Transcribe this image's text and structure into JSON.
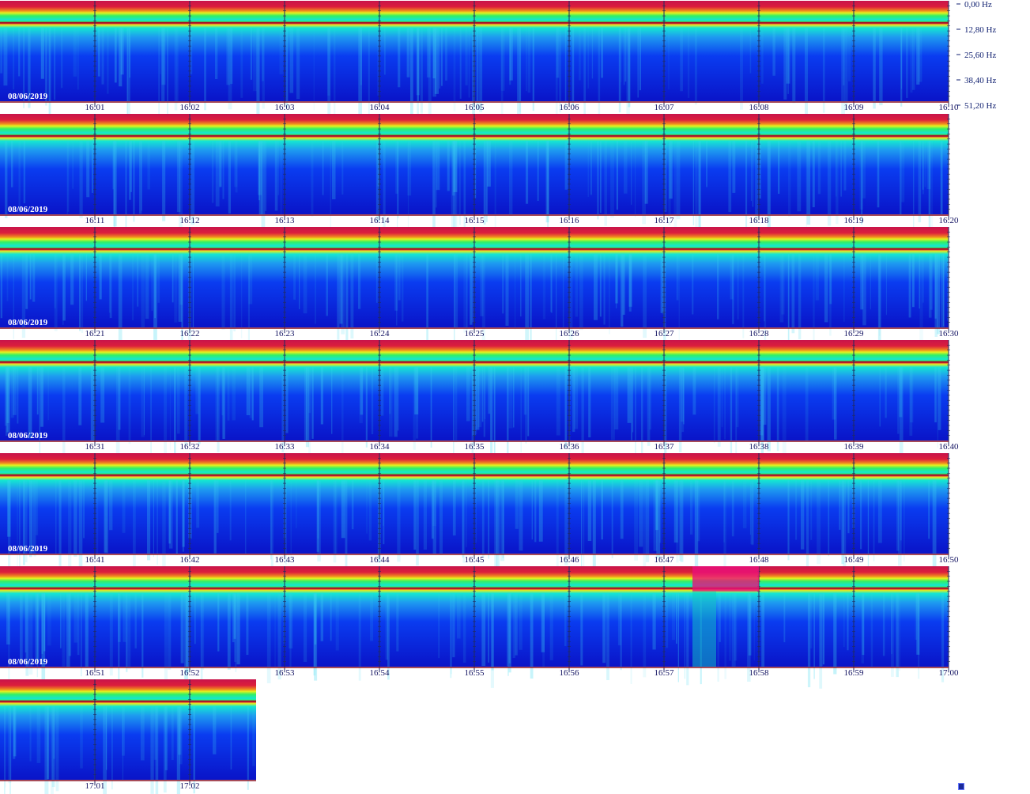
{
  "chart_data": {
    "type": "heatmap",
    "title": "",
    "xlabel": "",
    "ylabel": "",
    "frequency_axis": {
      "unit": "Hz",
      "labels": [
        "0,00 Hz",
        "12,80 Hz",
        "25,60 Hz",
        "38,40 Hz",
        "51,20 Hz"
      ],
      "range": [
        0,
        51.2
      ]
    },
    "colormap": [
      "#0a14c8",
      "#0a3cf0",
      "#1e9bf0",
      "#14e6d2",
      "#32f064",
      "#e6f01e",
      "#f08c1e",
      "#dc1e3c",
      "#c8144b"
    ],
    "rows": [
      {
        "date": "08/06/2019",
        "start": "16:00",
        "ticks": [
          "16:01",
          "16:02",
          "16:03",
          "16:04",
          "16:05",
          "16:06",
          "16:07",
          "16:08",
          "16:09",
          "16:10"
        ],
        "minutes": 10
      },
      {
        "date": "08/06/2019",
        "start": "16:10",
        "ticks": [
          "16:11",
          "16:12",
          "16:13",
          "16:14",
          "16:15",
          "16:16",
          "16:17",
          "16:18",
          "16:19",
          "16:20"
        ],
        "minutes": 10
      },
      {
        "date": "08/06/2019",
        "start": "16:20",
        "ticks": [
          "16:21",
          "16:22",
          "16:23",
          "16:24",
          "16:25",
          "16:26",
          "16:27",
          "16:28",
          "16:29",
          "16:30"
        ],
        "minutes": 10
      },
      {
        "date": "08/06/2019",
        "start": "16:30",
        "ticks": [
          "16:31",
          "16:32",
          "16:33",
          "16:34",
          "16:35",
          "16:36",
          "16:37",
          "16:38",
          "16:39",
          "16:40"
        ],
        "minutes": 10
      },
      {
        "date": "08/06/2019",
        "start": "16:40",
        "ticks": [
          "16:41",
          "16:42",
          "16:43",
          "16:44",
          "16:45",
          "16:46",
          "16:47",
          "16:48",
          "16:49",
          "16:50"
        ],
        "minutes": 10
      },
      {
        "date": "08/06/2019",
        "start": "16:50",
        "ticks": [
          "16:51",
          "16:52",
          "16:53",
          "16:54",
          "16:55",
          "16:56",
          "16:57",
          "16:58",
          "16:59",
          "17:00"
        ],
        "minutes": 10
      },
      {
        "date": "",
        "start": "17:00",
        "ticks": [
          "17:01",
          "17:02"
        ],
        "minutes": 2.7
      }
    ],
    "grid": true,
    "legend": "none"
  }
}
